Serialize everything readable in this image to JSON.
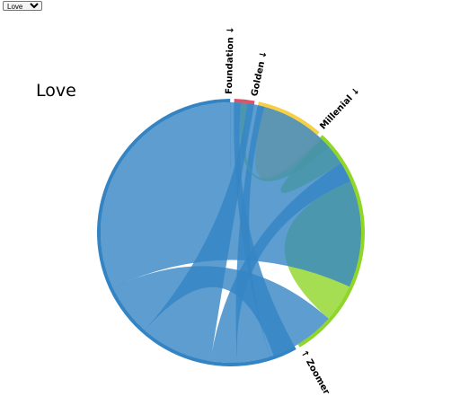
{
  "topic_select": {
    "selected": "Love",
    "options": [
      "Love"
    ]
  },
  "chart_data": {
    "type": "chord",
    "title": "Love",
    "groups": [
      {
        "name": "Foundation",
        "label": "Foundation ↓",
        "color": "#d9536a",
        "total": 3
      },
      {
        "name": "Golden",
        "label": "Golden ↓",
        "color": "#f5cf44",
        "total": 10
      },
      {
        "name": "Millenial",
        "label": "Millenial ↓",
        "color": "#8fd628",
        "total": 36
      },
      {
        "name": "Zoomer",
        "label": "↑ Zoomer",
        "color": "#3484c4",
        "total": 71
      }
    ],
    "ribbons": [
      {
        "source": "Zoomer",
        "source_value": 4,
        "target": "Foundation",
        "target_value": 1
      },
      {
        "source": "Zoomer",
        "source_value": 5,
        "target": "Golden",
        "target_value": 1
      },
      {
        "source": "Millenial",
        "source_value": 2,
        "target": "Foundation",
        "target_value": 1
      },
      {
        "source": "Golden",
        "source_value": 5,
        "target": "Golden",
        "target_value": 5
      },
      {
        "source": "Millenial",
        "source_value": 3,
        "target": "Golden",
        "target_value": 2
      },
      {
        "source": "Zoomer",
        "source_value": 4,
        "target": "Millenial",
        "target_value": 3
      },
      {
        "source": "Zoomer",
        "source_value": 11,
        "target": "Foundation",
        "target_value": 1
      },
      {
        "source": "Millenial",
        "source_value": 11,
        "target": "Millenial",
        "target_value": 11
      },
      {
        "source": "Zoomer",
        "source_value": 8,
        "target": "Millenial",
        "target_value": 10
      },
      {
        "source": "Zoomer",
        "source_value": 39,
        "target": "Zoomer",
        "target_value": 39
      }
    ]
  }
}
